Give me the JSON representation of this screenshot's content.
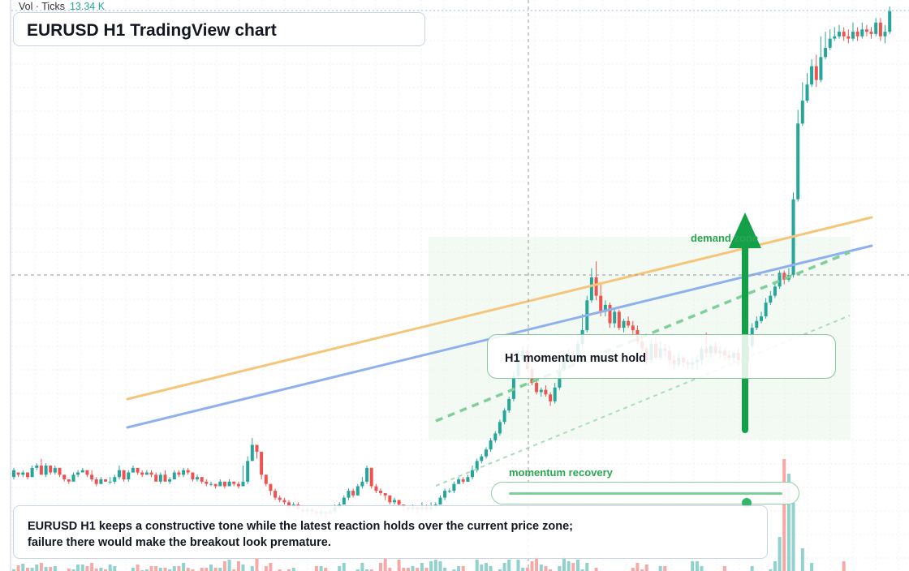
{
  "volume_legend": {
    "label": "Vol · Ticks",
    "value": "13.34 K"
  },
  "title": "EURUSD H1 TradingView chart",
  "callout": {
    "text": "H1 momentum must hold"
  },
  "zone": {
    "label": "demand zone"
  },
  "slider": {
    "label": "momentum recovery",
    "level": 0.87
  },
  "note": {
    "text": "EURUSD H1 keeps a constructive tone while the latest reaction holds over the current price zone; failure there would make the breakout look premature."
  },
  "colors": {
    "up": "#26a69a",
    "down": "#ef5350",
    "orange_line": "#f5c57a",
    "blue_line": "#8fb0ef",
    "zone_fill": "#eaf6ea",
    "dashed_trend": "#7fcf99",
    "arrow": "#14a049"
  },
  "chart_data": {
    "type": "candlestick",
    "price_candles": [
      [
        1.0,
        4.0,
        0.0,
        5.0
      ],
      [
        3.0,
        2.0,
        1.0,
        3.0
      ],
      [
        2.0,
        3.0,
        1.0,
        4.0
      ],
      [
        3.0,
        1.0,
        0.0,
        3.0
      ],
      [
        1.0,
        5.0,
        1.0,
        6.0
      ],
      [
        5.0,
        6.0,
        4.0,
        7.0
      ],
      [
        6.0,
        2.0,
        2.0,
        9.0
      ],
      [
        2.0,
        6.0,
        1.0,
        7.0
      ],
      [
        6.0,
        3.0,
        2.0,
        6.0
      ],
      [
        3.0,
        5.0,
        2.0,
        6.0
      ],
      [
        5.0,
        2.0,
        1.0,
        5.0
      ],
      [
        2.0,
        0.0,
        -1.0,
        2.0
      ],
      [
        0.0,
        -1.0,
        -2.0,
        0.0
      ],
      [
        -1.0,
        2.0,
        -1.0,
        3.0
      ],
      [
        2.0,
        3.0,
        1.0,
        4.0
      ],
      [
        3.0,
        4.0,
        3.0,
        5.0
      ],
      [
        4.0,
        2.0,
        1.0,
        4.0
      ],
      [
        2.0,
        0.0,
        -1.0,
        4.0
      ],
      [
        0.0,
        -2.0,
        -3.0,
        1.0
      ],
      [
        -2.0,
        0.0,
        -2.0,
        1.0
      ],
      [
        0.0,
        -1.0,
        -1.0,
        0.0
      ],
      [
        -1.0,
        -1.0,
        -2.0,
        1.0
      ],
      [
        -1.0,
        1.0,
        -2.0,
        2.0
      ],
      [
        1.0,
        4.0,
        0.0,
        6.0
      ],
      [
        4.0,
        0.0,
        -1.0,
        4.0
      ],
      [
        0.0,
        3.0,
        -1.0,
        4.0
      ],
      [
        3.0,
        5.0,
        3.0,
        6.0
      ],
      [
        5.0,
        3.0,
        2.0,
        5.0
      ],
      [
        3.0,
        2.0,
        1.0,
        4.0
      ],
      [
        2.0,
        3.0,
        2.0,
        4.0
      ],
      [
        3.0,
        2.0,
        1.0,
        4.0
      ],
      [
        2.0,
        -1.0,
        -1.0,
        3.0
      ],
      [
        -1.0,
        2.0,
        -2.0,
        3.0
      ],
      [
        2.0,
        -1.0,
        -1.0,
        4.0
      ],
      [
        -1.0,
        0.0,
        -2.0,
        1.0
      ],
      [
        0.0,
        3.0,
        0.0,
        4.0
      ],
      [
        3.0,
        2.0,
        1.0,
        4.0
      ],
      [
        2.0,
        4.0,
        1.0,
        5.0
      ],
      [
        4.0,
        3.0,
        2.0,
        5.0
      ],
      [
        3.0,
        0.0,
        -1.0,
        3.0
      ],
      [
        0.0,
        1.0,
        -1.0,
        2.0
      ],
      [
        1.0,
        -1.0,
        -2.0,
        1.0
      ],
      [
        -1.0,
        -2.0,
        -3.0,
        0.0
      ],
      [
        -2.0,
        -2.0,
        -3.0,
        -1.0
      ],
      [
        -2.0,
        -3.0,
        -4.0,
        -2.0
      ],
      [
        -3.0,
        -1.0,
        -3.0,
        0.0
      ],
      [
        -1.0,
        -3.0,
        -4.0,
        -1.0
      ],
      [
        -3.0,
        -1.0,
        -3.0,
        0.0
      ],
      [
        -1.0,
        -2.0,
        -3.0,
        -1.0
      ],
      [
        -2.0,
        -3.0,
        -4.0,
        -1.0
      ],
      [
        -3.0,
        -1.0,
        -3.0,
        6.0
      ],
      [
        -1.0,
        8.0,
        -2.0,
        10.0
      ],
      [
        8.0,
        15.0,
        8.0,
        18.0
      ],
      [
        15.0,
        12.0,
        9.0,
        15.0
      ],
      [
        12.0,
        2.0,
        0.0,
        12.0
      ],
      [
        2.0,
        -2.0,
        -3.0,
        2.0
      ],
      [
        -2.0,
        -5.0,
        -7.0,
        -2.0
      ],
      [
        -5.0,
        -8.0,
        -9.0,
        -4.0
      ],
      [
        -8.0,
        -9.0,
        -10.0,
        -7.0
      ],
      [
        -9.0,
        -10.0,
        -11.0,
        -8.0
      ],
      [
        -10.0,
        -12.0,
        -13.0,
        -9.0
      ],
      [
        -12.0,
        -11.0,
        -13.0,
        -10.0
      ],
      [
        -11.0,
        -13.0,
        -14.0,
        -10.0
      ],
      [
        -13.0,
        -14.0,
        -15.0,
        -12.0
      ],
      [
        -14.0,
        -13.0,
        -15.0,
        -12.0
      ],
      [
        -13.0,
        -14.0,
        -15.0,
        -12.0
      ],
      [
        -14.0,
        -15.0,
        -16.0,
        -13.0
      ],
      [
        -15.0,
        -14.0,
        -16.0,
        -13.0
      ],
      [
        -14.0,
        -15.0,
        -17.0,
        -14.0
      ],
      [
        -15.0,
        -14.0,
        -15.0,
        -13.0
      ],
      [
        -14.0,
        -12.0,
        -15.0,
        -11.0
      ],
      [
        -12.0,
        -11.0,
        -13.0,
        -10.0
      ],
      [
        -11.0,
        -8.0,
        -11.0,
        -7.0
      ],
      [
        -8.0,
        -5.0,
        -9.0,
        -4.0
      ],
      [
        -5.0,
        -7.0,
        -8.0,
        -4.0
      ],
      [
        -7.0,
        -3.0,
        -7.0,
        -2.0
      ],
      [
        -3.0,
        -1.0,
        -4.0,
        1.0
      ],
      [
        -1.0,
        5.0,
        -2.0,
        6.0
      ],
      [
        5.0,
        -3.0,
        -4.0,
        5.0
      ],
      [
        -3.0,
        -5.0,
        -6.0,
        -2.0
      ],
      [
        -5.0,
        -6.0,
        -7.0,
        -4.0
      ],
      [
        -6.0,
        -7.0,
        -9.0,
        -6.0
      ],
      [
        -7.0,
        -10.0,
        -11.0,
        -7.0
      ],
      [
        -10.0,
        -9.0,
        -11.0,
        -8.0
      ],
      [
        -9.0,
        -11.0,
        -12.0,
        -9.0
      ],
      [
        -11.0,
        -12.0,
        -14.0,
        -11.0
      ],
      [
        -12.0,
        -13.0,
        -14.0,
        -12.0
      ],
      [
        -13.0,
        -12.0,
        -14.0,
        -11.0
      ],
      [
        -12.0,
        -13.0,
        -15.0,
        -12.0
      ],
      [
        -13.0,
        -12.0,
        -14.0,
        -10.0
      ],
      [
        -12.0,
        -13.0,
        -14.0,
        -11.0
      ],
      [
        -13.0,
        -12.0,
        -14.0,
        -10.0
      ],
      [
        -12.0,
        -11.0,
        -13.0,
        -10.0
      ],
      [
        -11.0,
        -8.0,
        -11.0,
        -7.0
      ],
      [
        -8.0,
        -5.0,
        -9.0,
        -4.0
      ],
      [
        -5.0,
        -5.0,
        -6.0,
        -4.0
      ],
      [
        -5.0,
        -2.0,
        -6.0,
        -1.0
      ],
      [
        -2.0,
        0.0,
        -2.0,
        1.0
      ],
      [
        0.0,
        -1.0,
        -2.0,
        1.0
      ],
      [
        -1.0,
        1.0,
        -1.0,
        2.0
      ],
      [
        1.0,
        4.0,
        0.0,
        6.0
      ],
      [
        4.0,
        8.0,
        3.0,
        9.0
      ],
      [
        8.0,
        10.0,
        7.0,
        11.0
      ],
      [
        10.0,
        13.0,
        9.0,
        14.0
      ],
      [
        13.0,
        17.0,
        12.0,
        18.0
      ],
      [
        17.0,
        20.0,
        16.0,
        21.0
      ],
      [
        20.0,
        25.0,
        19.0,
        26.0
      ],
      [
        25.0,
        30.0,
        24.0,
        31.0
      ],
      [
        30.0,
        35.0,
        29.0,
        36.0
      ],
      [
        35.0,
        45.0,
        34.0,
        47.0
      ],
      [
        45.0,
        52.0,
        44.0,
        56.0
      ],
      [
        52.0,
        56.0,
        52.0,
        58.0
      ],
      [
        56.0,
        48.0,
        47.0,
        58.0
      ],
      [
        48.0,
        42.0,
        41.0,
        49.0
      ],
      [
        42.0,
        38.0,
        37.0,
        43.0
      ],
      [
        38.0,
        39.0,
        36.0,
        40.0
      ],
      [
        39.0,
        37.0,
        36.0,
        41.0
      ],
      [
        37.0,
        34.0,
        32.0,
        38.0
      ],
      [
        34.0,
        40.0,
        33.0,
        42.0
      ],
      [
        40.0,
        48.0,
        39.0,
        50.0
      ],
      [
        48.0,
        52.0,
        47.0,
        54.0
      ],
      [
        52.0,
        54.0,
        51.0,
        57.0
      ],
      [
        54.0,
        53.0,
        51.0,
        56.0
      ],
      [
        53.0,
        59.0,
        52.0,
        61.0
      ],
      [
        59.0,
        65.0,
        58.0,
        72.0
      ],
      [
        65.0,
        78.0,
        64.0,
        80.0
      ],
      [
        78.0,
        88.0,
        77.0,
        92.0
      ],
      [
        88.0,
        80.0,
        78.0,
        95.0
      ],
      [
        80.0,
        73.0,
        71.0,
        85.0
      ],
      [
        73.0,
        76.0,
        71.0,
        78.0
      ],
      [
        76.0,
        68.0,
        66.0,
        77.0
      ],
      [
        68.0,
        73.0,
        66.0,
        74.0
      ],
      [
        73.0,
        66.0,
        65.0,
        74.0
      ],
      [
        66.0,
        69.0,
        64.0,
        70.0
      ],
      [
        69.0,
        67.0,
        66.0,
        71.0
      ],
      [
        67.0,
        65.0,
        63.0,
        69.0
      ],
      [
        65.0,
        60.0,
        59.0,
        67.0
      ],
      [
        60.0,
        57.0,
        56.0,
        62.0
      ],
      [
        57.0,
        52.0,
        50.0,
        58.0
      ],
      [
        52.0,
        59.0,
        51.0,
        61.0
      ],
      [
        59.0,
        53.0,
        52.0,
        62.0
      ],
      [
        53.0,
        57.0,
        52.0,
        60.0
      ],
      [
        57.0,
        56.0,
        54.0,
        59.0
      ],
      [
        56.0,
        52.0,
        50.0,
        58.0
      ],
      [
        52.0,
        50.0,
        48.0,
        54.0
      ],
      [
        50.0,
        53.0,
        49.0,
        55.0
      ],
      [
        53.0,
        51.0,
        49.0,
        54.0
      ],
      [
        51.0,
        50.0,
        48.0,
        52.0
      ],
      [
        50.0,
        51.0,
        48.0,
        53.0
      ],
      [
        51.0,
        52.0,
        48.0,
        54.0
      ],
      [
        52.0,
        57.0,
        50.0,
        58.0
      ],
      [
        57.0,
        55.0,
        53.0,
        64.0
      ],
      [
        55.0,
        58.0,
        53.0,
        59.0
      ],
      [
        58.0,
        55.0,
        54.0,
        60.0
      ],
      [
        55.0,
        56.0,
        53.0,
        58.0
      ],
      [
        56.0,
        54.0,
        52.0,
        57.0
      ],
      [
        54.0,
        53.0,
        52.0,
        56.0
      ],
      [
        53.0,
        55.0,
        51.0,
        56.0
      ],
      [
        55.0,
        52.0,
        50.0,
        57.0
      ],
      [
        52.0,
        51.0,
        49.0,
        54.0
      ],
      [
        51.0,
        58.0,
        50.0,
        60.0
      ],
      [
        58.0,
        66.0,
        57.0,
        68.0
      ],
      [
        66.0,
        69.0,
        65.0,
        71.0
      ],
      [
        69.0,
        71.0,
        68.0,
        73.0
      ],
      [
        71.0,
        77.0,
        70.0,
        79.0
      ],
      [
        77.0,
        80.0,
        76.0,
        82.0
      ],
      [
        80.0,
        84.0,
        79.0,
        86.0
      ],
      [
        84.0,
        90.0,
        83.0,
        91.0
      ],
      [
        90.0,
        87.0,
        85.0,
        91.0
      ],
      [
        87.0,
        89.0,
        86.0,
        92.0
      ],
      [
        89.0,
        122.0,
        88.0,
        125.0
      ],
      [
        122.0,
        155.0,
        121.0,
        161.0
      ],
      [
        155.0,
        165.0,
        154.0,
        173.0
      ],
      [
        165.0,
        172.0,
        164.0,
        177.0
      ],
      [
        172.0,
        180.0,
        171.0,
        183.0
      ],
      [
        180.0,
        174.0,
        171.0,
        185.0
      ],
      [
        174.0,
        184.0,
        173.0,
        193.0
      ],
      [
        184.0,
        188.0,
        183.0,
        195.0
      ],
      [
        188.0,
        192.0,
        187.0,
        196.0
      ],
      [
        192.0,
        193.0,
        191.0,
        197.0
      ],
      [
        193.0,
        195.0,
        192.0,
        198.0
      ],
      [
        195.0,
        193.0,
        191.0,
        197.0
      ],
      [
        193.0,
        192.0,
        190.0,
        196.0
      ],
      [
        192.0,
        195.0,
        191.0,
        199.0
      ],
      [
        195.0,
        193.0,
        191.0,
        197.0
      ],
      [
        193.0,
        196.0,
        192.0,
        199.0
      ],
      [
        196.0,
        195.0,
        193.0,
        198.0
      ],
      [
        195.0,
        194.0,
        192.0,
        197.0
      ],
      [
        194.0,
        199.0,
        193.0,
        201.0
      ],
      [
        199.0,
        193.0,
        191.0,
        201.0
      ],
      [
        193.0,
        195.0,
        190.0,
        198.0
      ],
      [
        195.0,
        204.0,
        194.0,
        206.0
      ]
    ],
    "volume": [
      2,
      7,
      9,
      4,
      4,
      8,
      10,
      5,
      5,
      6,
      0,
      0,
      3,
      2,
      8,
      8,
      6,
      10,
      3,
      4,
      2,
      8,
      6,
      0,
      0,
      0,
      4,
      8,
      1,
      2,
      6,
      6,
      4,
      4,
      2,
      6,
      6,
      10,
      4,
      2,
      0,
      4,
      4,
      8,
      4,
      4,
      12,
      14,
      2,
      12,
      8,
      0,
      6,
      16,
      0,
      6,
      10,
      0,
      2,
      0,
      2,
      4,
      0,
      0,
      0,
      0,
      6,
      6,
      4,
      0,
      0,
      6,
      10,
      0,
      0,
      2,
      10,
      2,
      2,
      0,
      10,
      16,
      4,
      0,
      14,
      4,
      4,
      6,
      4,
      10,
      4,
      12,
      14,
      12,
      4,
      0,
      2,
      6,
      6,
      0,
      0,
      14,
      8,
      10,
      6,
      0,
      2,
      10,
      14,
      0,
      14,
      4,
      4,
      12,
      18,
      8,
      6,
      2,
      0,
      6,
      18,
      12,
      10,
      14,
      2,
      10,
      0,
      4,
      0,
      0,
      0,
      0,
      0,
      0,
      0,
      4,
      10,
      2,
      8,
      0,
      0,
      6,
      6,
      0,
      0,
      0,
      0,
      0,
      12,
      12,
      6,
      0,
      0,
      0,
      0,
      6,
      0,
      0,
      0,
      0,
      0,
      6,
      0,
      0,
      0,
      2,
      12,
      42,
      138,
      120,
      84,
      0,
      28,
      0,
      10,
      0,
      0,
      0,
      0,
      0,
      0,
      12,
      0,
      0,
      0,
      0,
      0,
      0,
      0,
      0,
      0,
      0
    ],
    "trendlines": [
      "resistance",
      "support",
      "rising-support",
      "lower-channel"
    ],
    "annotations": [
      "demand zone",
      "H1 momentum must hold",
      "momentum recovery"
    ]
  }
}
